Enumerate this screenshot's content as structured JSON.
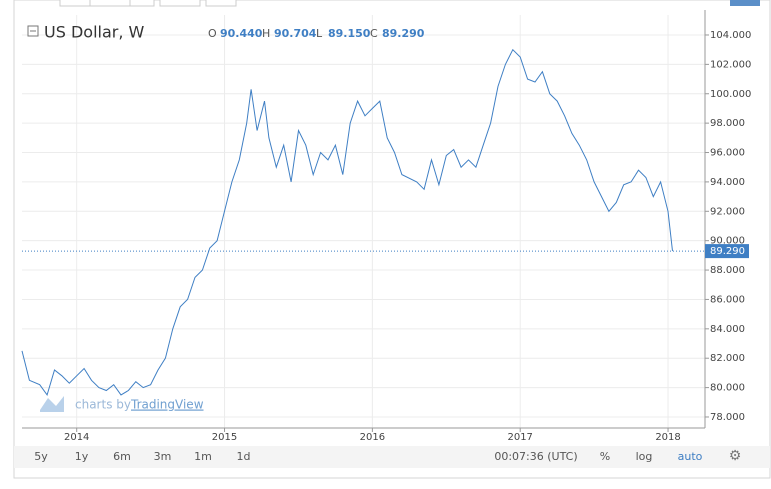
{
  "chart_data": {
    "type": "line",
    "title": "US Dollar, W",
    "ohlc": [
      {
        "name": "O",
        "value": 90.44,
        "label": "90.440"
      },
      {
        "name": "H",
        "value": 90.704,
        "label": "90.704"
      },
      {
        "name": "L",
        "value": 89.15,
        "label": "89.150"
      },
      {
        "name": "C",
        "value": 89.29,
        "label": "89.290"
      }
    ],
    "last_price": {
      "value": 89.29,
      "label": "89.290"
    },
    "watermark": [
      "charts by",
      "TradingView"
    ],
    "x": [
      2013.63,
      2013.68,
      2013.75,
      2013.8,
      2013.85,
      2013.9,
      2013.95,
      2014.0,
      2014.05,
      2014.1,
      2014.15,
      2014.2,
      2014.25,
      2014.3,
      2014.35,
      2014.4,
      2014.45,
      2014.5,
      2014.55,
      2014.6,
      2014.65,
      2014.7,
      2014.75,
      2014.8,
      2014.85,
      2014.9,
      2014.95,
      2015.0,
      2015.05,
      2015.1,
      2015.15,
      2015.18,
      2015.22,
      2015.27,
      2015.3,
      2015.35,
      2015.4,
      2015.45,
      2015.5,
      2015.55,
      2015.6,
      2015.65,
      2015.7,
      2015.75,
      2015.8,
      2015.85,
      2015.9,
      2015.95,
      2016.0,
      2016.05,
      2016.1,
      2016.15,
      2016.2,
      2016.3,
      2016.35,
      2016.4,
      2016.45,
      2016.5,
      2016.55,
      2016.6,
      2016.65,
      2016.7,
      2016.75,
      2016.8,
      2016.85,
      2016.9,
      2016.95,
      2017.0,
      2017.05,
      2017.1,
      2017.15,
      2017.2,
      2017.25,
      2017.3,
      2017.35,
      2017.4,
      2017.45,
      2017.5,
      2017.55,
      2017.6,
      2017.65,
      2017.7,
      2017.75,
      2017.8,
      2017.85,
      2017.9,
      2017.95,
      2018.0,
      2018.03
    ],
    "series": [
      {
        "name": "US Dollar",
        "color": "#3f7fc4",
        "values": [
          82.5,
          80.5,
          80.2,
          79.5,
          81.2,
          80.8,
          80.3,
          80.8,
          81.3,
          80.5,
          80.0,
          79.8,
          80.2,
          79.5,
          79.8,
          80.4,
          80.0,
          80.2,
          81.2,
          82.0,
          84.0,
          85.5,
          86.0,
          87.5,
          88.0,
          89.5,
          90.0,
          92.0,
          94.0,
          95.5,
          98.0,
          100.3,
          97.5,
          99.5,
          97.0,
          95.0,
          96.5,
          94.0,
          97.5,
          96.5,
          94.5,
          96.0,
          95.5,
          96.5,
          94.5,
          98.0,
          99.5,
          98.5,
          99.0,
          99.5,
          97.0,
          96.0,
          94.5,
          94.0,
          93.5,
          95.5,
          93.8,
          95.8,
          96.2,
          95.0,
          95.5,
          95.0,
          96.5,
          98.0,
          100.5,
          102.0,
          103.0,
          102.5,
          101.0,
          100.8,
          101.5,
          100.0,
          99.5,
          98.5,
          97.3,
          96.5,
          95.5,
          94.0,
          93.0,
          92.0,
          92.6,
          93.8,
          94.0,
          94.8,
          94.3,
          93.0,
          94.0,
          92.0,
          89.29
        ]
      }
    ],
    "xlim": [
      2013.63,
      2018.25
    ],
    "xticks": [
      2014,
      2015,
      2016,
      2017,
      2018
    ],
    "ylim": [
      77.25,
      105.36
    ],
    "yticks": [
      {
        "value": 78,
        "label": "78.000"
      },
      {
        "value": 80,
        "label": "80.000"
      },
      {
        "value": 82,
        "label": "82.000"
      },
      {
        "value": 84,
        "label": "84.000"
      },
      {
        "value": 86,
        "label": "86.000"
      },
      {
        "value": 88,
        "label": "88.000"
      },
      {
        "value": 90,
        "label": "90.000"
      },
      {
        "value": 92,
        "label": "92.000"
      },
      {
        "value": 94,
        "label": "94.000"
      },
      {
        "value": 96,
        "label": "96.000"
      },
      {
        "value": 98,
        "label": "98.000"
      },
      {
        "value": 100,
        "label": "100.000"
      },
      {
        "value": 102,
        "label": "102.000"
      },
      {
        "value": 104,
        "label": "104.000"
      }
    ],
    "grid": true,
    "toolbar": {
      "ranges": [
        "5y",
        "1y",
        "6m",
        "3m",
        "1m",
        "1d"
      ],
      "time": "00:07:36 (UTC)",
      "options": [
        "%",
        "log",
        "auto"
      ]
    }
  }
}
